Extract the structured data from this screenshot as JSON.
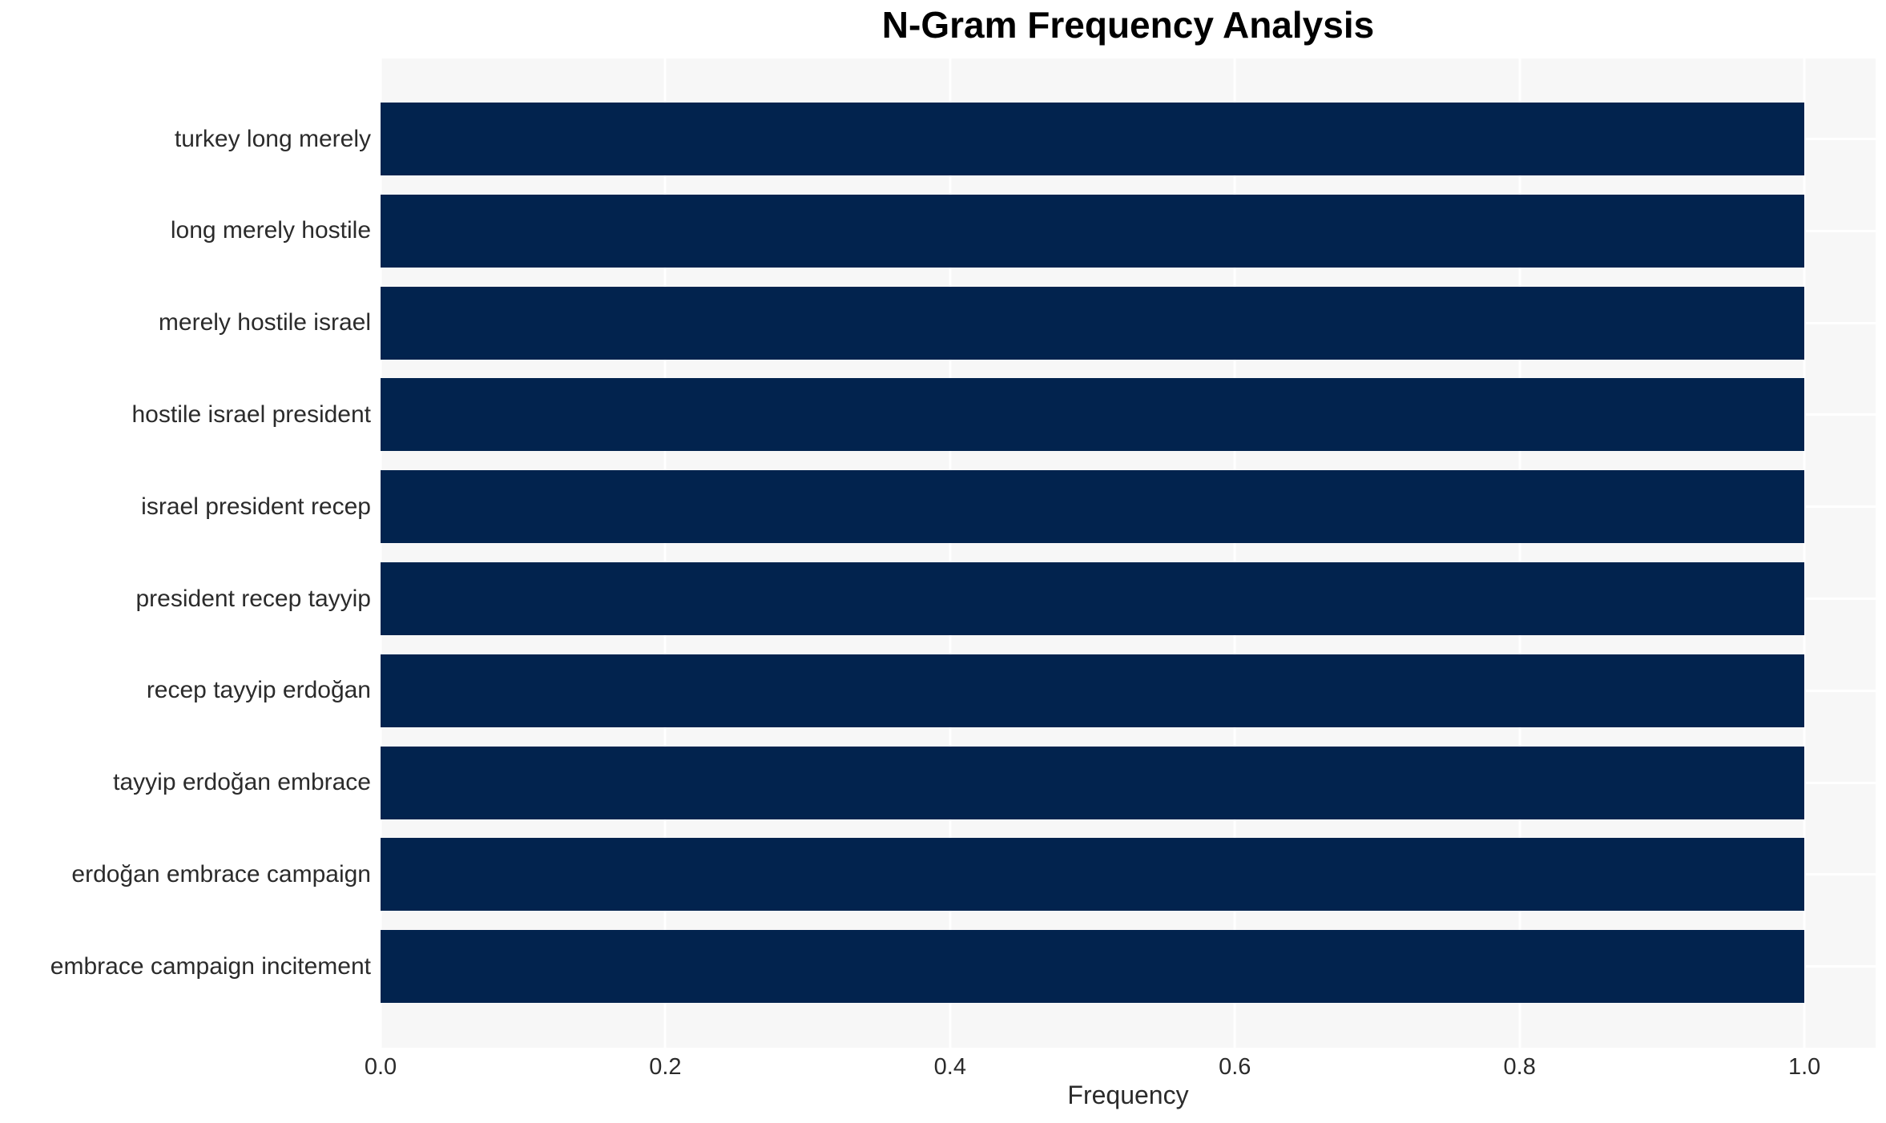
{
  "chart_data": {
    "type": "bar",
    "orientation": "horizontal",
    "title": "N-Gram Frequency Analysis",
    "xlabel": "Frequency",
    "ylabel": "",
    "categories": [
      "turkey long merely",
      "long merely hostile",
      "merely hostile israel",
      "hostile israel president",
      "israel president recep",
      "president recep tayyip",
      "recep tayyip erdoğan",
      "tayyip erdoğan embrace",
      "erdoğan embrace campaign",
      "embrace campaign incitement"
    ],
    "values": [
      1.0,
      1.0,
      1.0,
      1.0,
      1.0,
      1.0,
      1.0,
      1.0,
      1.0,
      1.0
    ],
    "xticks": [
      0.0,
      0.2,
      0.4,
      0.6,
      0.8,
      1.0
    ],
    "xtick_labels": [
      "0.0",
      "0.2",
      "0.4",
      "0.6",
      "0.8",
      "1.0"
    ],
    "xlim": [
      0,
      1.05
    ],
    "grid": true,
    "legend_position": "none",
    "colors": {
      "bar": "#02234e",
      "plot_background": "#f7f7f7",
      "gridline": "#ffffff",
      "tick_text": "#2b2b2b",
      "title_text": "#000000"
    }
  }
}
